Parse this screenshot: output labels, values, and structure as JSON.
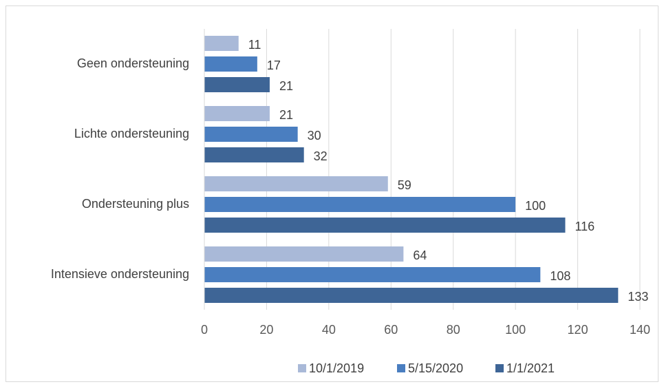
{
  "chart_data": {
    "type": "bar",
    "orientation": "horizontal",
    "categories": [
      "Geen ondersteuning",
      "Lichte ondersteuning",
      "Ondersteuning plus",
      "Intensieve ondersteuning"
    ],
    "series": [
      {
        "name": "10/1/2019",
        "color": "#a9b9d8",
        "values": [
          11,
          21,
          59,
          64
        ]
      },
      {
        "name": "5/15/2020",
        "color": "#4a7ec0",
        "values": [
          17,
          30,
          100,
          108
        ]
      },
      {
        "name": "1/1/2021",
        "color": "#3e6596",
        "values": [
          21,
          32,
          116,
          133
        ]
      }
    ],
    "xlim": [
      0,
      140
    ],
    "xticks": [
      0,
      20,
      40,
      60,
      80,
      100,
      120,
      140
    ],
    "grid": true,
    "legend": "bottom"
  }
}
